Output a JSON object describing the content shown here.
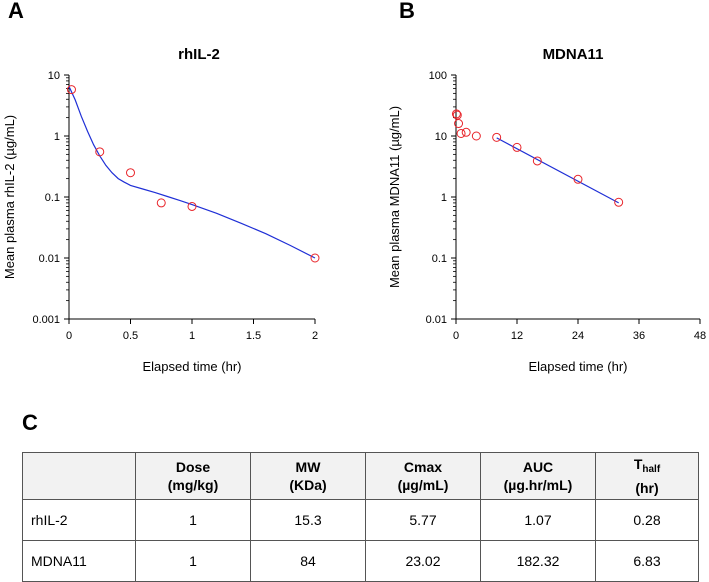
{
  "panels": {
    "a": "A",
    "b": "B",
    "c": "C"
  },
  "chart_data": [
    {
      "type": "scatter",
      "title": "rhIL-2",
      "xlabel": "Elapsed time (hr)",
      "ylabel": "Mean plasma rhIL-2 (µg/mL)",
      "yscale": "log",
      "xlim": [
        0,
        2
      ],
      "ylim": [
        0.001,
        10
      ],
      "xticks": [
        0,
        0.5,
        1,
        1.5,
        2
      ],
      "xtick_labels": [
        "0",
        "0.5",
        "1",
        "1.5",
        "2"
      ],
      "yticks": [
        0.001,
        0.01,
        0.1,
        1,
        10
      ],
      "ytick_labels": [
        "0.001",
        "0.01",
        "0.1",
        "1",
        "10"
      ],
      "series": [
        {
          "name": "observed",
          "marker": "open-circle",
          "color": "#e8242a",
          "x": [
            0.02,
            0.25,
            0.5,
            0.75,
            1.0,
            2.0
          ],
          "y": [
            5.77,
            0.55,
            0.25,
            0.08,
            0.07,
            0.01
          ]
        },
        {
          "name": "fit",
          "line": true,
          "color": "#1f2fd6",
          "x": [
            0.0,
            0.05,
            0.1,
            0.15,
            0.2,
            0.25,
            0.3,
            0.35,
            0.4,
            0.45,
            0.5,
            0.6,
            0.7,
            0.8,
            0.9,
            1.0,
            1.2,
            1.4,
            1.6,
            1.8,
            2.0
          ],
          "y": [
            6.5,
            3.9,
            2.1,
            1.2,
            0.72,
            0.47,
            0.33,
            0.25,
            0.2,
            0.175,
            0.155,
            0.135,
            0.118,
            0.102,
            0.088,
            0.075,
            0.054,
            0.037,
            0.025,
            0.016,
            0.01
          ]
        }
      ]
    },
    {
      "type": "scatter",
      "title": "MDNA11",
      "xlabel": "Elapsed time (hr)",
      "ylabel": "Mean plasma MDNA11 (µg/mL)",
      "yscale": "log",
      "xlim": [
        0,
        48
      ],
      "ylim": [
        0.01,
        100
      ],
      "xticks": [
        0,
        12,
        24,
        36,
        48
      ],
      "xtick_labels": [
        "0",
        "12",
        "24",
        "36",
        "48"
      ],
      "yticks": [
        0.01,
        0.1,
        1,
        10,
        100
      ],
      "ytick_labels": [
        "0.01",
        "0.1",
        "1",
        "10",
        "100"
      ],
      "series": [
        {
          "name": "observed",
          "marker": "open-circle",
          "color": "#e8242a",
          "x": [
            0.08,
            0.25,
            0.5,
            1,
            2,
            4,
            8,
            12,
            16,
            24,
            32
          ],
          "y": [
            23.0,
            22.0,
            16.0,
            11.0,
            11.5,
            10.0,
            9.5,
            6.5,
            3.9,
            1.95,
            0.82
          ]
        },
        {
          "name": "fit",
          "line": true,
          "color": "#1f2fd6",
          "x": [
            8,
            32
          ],
          "y": [
            9.3,
            0.8
          ]
        }
      ]
    }
  ],
  "table": {
    "headers": [
      {
        "line1": "Dose",
        "line2": "(mg/kg)"
      },
      {
        "line1": "MW",
        "line2": "(KDa)"
      },
      {
        "line1": "Cmax",
        "line2": "(µg/mL)"
      },
      {
        "line1": "AUC",
        "line2": "(µg.hr/mL)"
      },
      {
        "line1": "T",
        "sub": "half",
        "line2": "(hr)"
      }
    ],
    "rows": [
      {
        "name": "rhIL-2",
        "values": [
          "1",
          "15.3",
          "5.77",
          "1.07",
          "0.28"
        ]
      },
      {
        "name": "MDNA11",
        "values": [
          "1",
          "84",
          "23.02",
          "182.32",
          "6.83"
        ]
      }
    ]
  }
}
